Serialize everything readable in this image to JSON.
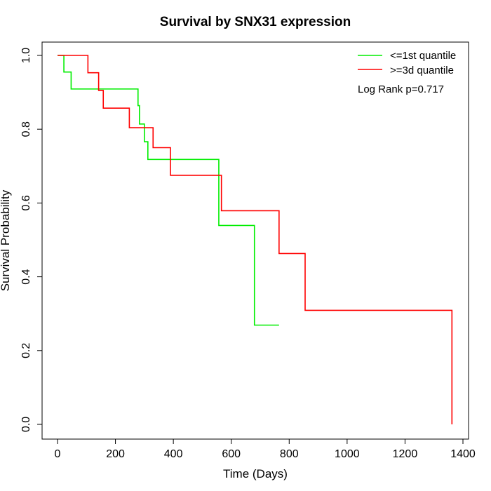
{
  "chart_data": {
    "type": "line",
    "title": "Survival by SNX31 expression",
    "xlabel": "Time (Days)",
    "ylabel": "Survival Probability",
    "xlim": [
      0,
      1400
    ],
    "ylim": [
      0,
      1.0
    ],
    "xticks": [
      0,
      200,
      400,
      600,
      800,
      1000,
      1200,
      1400
    ],
    "yticks": [
      0.0,
      0.2,
      0.4,
      0.6,
      0.8,
      1.0
    ],
    "xtick_labels": [
      "0",
      "200",
      "400",
      "600",
      "800",
      "1000",
      "1200",
      "1400"
    ],
    "ytick_labels": [
      "0.0",
      "0.2",
      "0.4",
      "0.6",
      "0.8",
      "1.0"
    ],
    "grid": false,
    "legend_position": "top-right",
    "annotation": "Log Rank p=0.717",
    "series": [
      {
        "name": "<=1st quantile",
        "color": "#00ee00",
        "step": true,
        "x": [
          0,
          22,
          47,
          278,
          283,
          300,
          312,
          317,
          557,
          680,
          765
        ],
        "y": [
          1.0,
          0.955,
          0.909,
          0.864,
          0.814,
          0.766,
          0.718,
          0.718,
          0.539,
          0.269,
          0.269
        ]
      },
      {
        "name": ">=3d quantile",
        "color": "#ff0000",
        "step": true,
        "x": [
          0,
          105,
          142,
          158,
          248,
          330,
          390,
          566,
          765,
          855,
          1362,
          1362
        ],
        "y": [
          1.0,
          0.953,
          0.905,
          0.857,
          0.804,
          0.75,
          0.675,
          0.579,
          0.463,
          0.309,
          0.309,
          0.0
        ]
      }
    ]
  }
}
